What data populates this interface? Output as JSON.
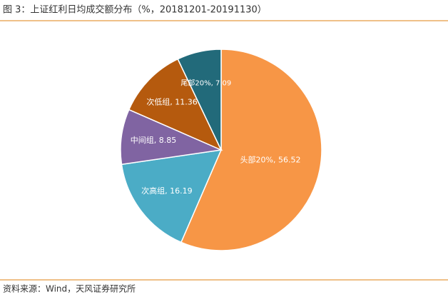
{
  "chart_data": {
    "type": "pie",
    "title": "图 3：上证红利日均成交额分布（%，20181201-20191130）",
    "categories": [
      "头部20%",
      "次高组",
      "中间组",
      "次低组",
      "尾部20%"
    ],
    "values": [
      56.52,
      16.19,
      8.85,
      11.36,
      7.09
    ],
    "value_labels": [
      "头部20%, 56.52",
      "次高组, 16.19",
      "中间组, 8.85",
      "次低组, 11.36",
      "尾部20%, 7.09"
    ],
    "colors": [
      "#f79646",
      "#4bacc6",
      "#8064a2",
      "#b55a0e",
      "#226a7a"
    ],
    "source": "资料来源：Wind，天风证券研究所"
  }
}
